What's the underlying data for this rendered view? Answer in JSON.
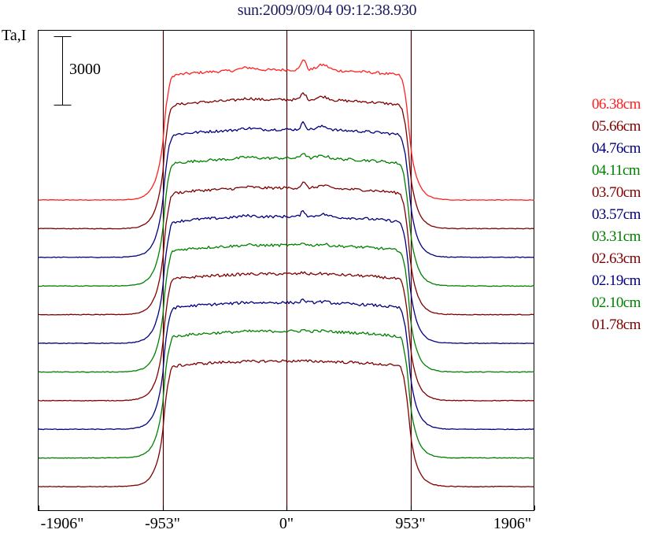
{
  "header": {
    "title": "sun:2009/09/04 09:12:38.930"
  },
  "chart_data": {
    "type": "line",
    "title": "sun:2009/09/04 09:12:38.930",
    "ylabel": "Ta,I",
    "xlabel": "",
    "scale_bar_label": "3000",
    "scale_bar_value": 3000,
    "xlim": [
      -1906,
      1906
    ],
    "x_ticks": [
      -1906,
      -953,
      0,
      953,
      1906
    ],
    "x_tick_labels": [
      "-1906\"",
      "-953\"",
      "0\"",
      "953\"",
      "1906\""
    ],
    "vertical_reference_lines": [
      -953,
      0,
      953
    ],
    "grid": false,
    "legend_position": "right",
    "stacked_offsets": true,
    "series": [
      {
        "name": "06.38cm",
        "color": "#ff2020",
        "baseline": 0,
        "disk_level": 5700,
        "peak": 6100
      },
      {
        "name": "05.66cm",
        "color": "#800000",
        "baseline": 0,
        "disk_level": 5650,
        "peak": 5900
      },
      {
        "name": "04.76cm",
        "color": "#000080",
        "baseline": 0,
        "disk_level": 5600,
        "peak": 5850
      },
      {
        "name": "04.11cm",
        "color": "#008000",
        "baseline": 0,
        "disk_level": 5600,
        "peak": 5800
      },
      {
        "name": "03.70cm",
        "color": "#800000",
        "baseline": 0,
        "disk_level": 5550,
        "peak": 5750
      },
      {
        "name": "03.57cm",
        "color": "#000080",
        "baseline": 0,
        "disk_level": 5550,
        "peak": 5750
      },
      {
        "name": "03.31cm",
        "color": "#008000",
        "baseline": 0,
        "disk_level": 5550,
        "peak": 5650
      },
      {
        "name": "02.63cm",
        "color": "#800000",
        "baseline": 0,
        "disk_level": 5550,
        "peak": 5600
      },
      {
        "name": "02.19cm",
        "color": "#000080",
        "baseline": 0,
        "disk_level": 5550,
        "peak": 5650
      },
      {
        "name": "02.10cm",
        "color": "#008000",
        "baseline": 0,
        "disk_level": 5550,
        "peak": 5600
      },
      {
        "name": "01.78cm",
        "color": "#800000",
        "baseline": 0,
        "disk_level": 5500,
        "peak": 5500
      }
    ]
  }
}
